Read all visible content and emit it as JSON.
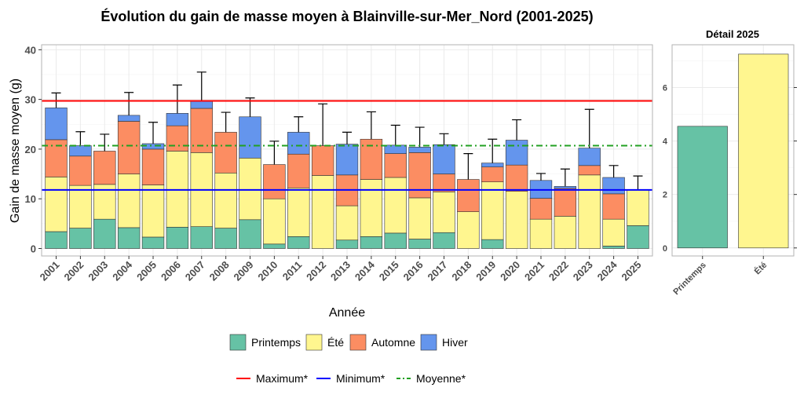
{
  "chart_data": [
    {
      "type": "bar",
      "stacked": true,
      "title": "Évolution du gain de masse moyen à Blainville-sur-Mer_Nord (2001-2025)",
      "xlabel": "Année",
      "ylabel": "Gain de masse moyen (g)",
      "ylim": [
        0,
        40
      ],
      "yticks": [
        0,
        10,
        20,
        30,
        40
      ],
      "grid": true,
      "legend_position": "bottom",
      "categories": [
        "2001",
        "2002",
        "2003",
        "2004",
        "2005",
        "2006",
        "2007",
        "2008",
        "2009",
        "2010",
        "2011",
        "2012",
        "2013",
        "2014",
        "2015",
        "2016",
        "2017",
        "2018",
        "2019",
        "2020",
        "2021",
        "2022",
        "2023",
        "2024",
        "2025"
      ],
      "series": [
        {
          "name": "Printemps",
          "color": "#66c2a5",
          "values": [
            3.4,
            4.1,
            5.9,
            4.2,
            2.3,
            4.3,
            4.4,
            4.1,
            5.8,
            0.9,
            2.4,
            0,
            1.7,
            2.4,
            3.1,
            1.9,
            3.2,
            0,
            1.8,
            0,
            0,
            0,
            0,
            0.5,
            4.6
          ]
        },
        {
          "name": "Été",
          "color": "#fff68f",
          "values": [
            11.0,
            8.6,
            7.0,
            10.8,
            10.5,
            15.3,
            14.9,
            11.1,
            12.4,
            9.1,
            9.8,
            14.7,
            6.9,
            11.5,
            11.2,
            8.3,
            8.2,
            7.4,
            11.6,
            11.5,
            5.9,
            6.5,
            14.8,
            5.4,
            7.2
          ]
        },
        {
          "name": "Automne",
          "color": "#fc8d62",
          "values": [
            7.5,
            5.9,
            6.7,
            10.6,
            7.2,
            5.1,
            8.9,
            8.2,
            0,
            6.9,
            6.8,
            6.0,
            6.2,
            8.1,
            4.8,
            9.1,
            3.6,
            6.5,
            3.0,
            5.3,
            4.2,
            5.6,
            1.9,
            5.1,
            0
          ]
        },
        {
          "name": "Hiver",
          "color": "#6495ed",
          "values": [
            6.4,
            2.1,
            0,
            1.2,
            1.1,
            2.5,
            1.5,
            0,
            8.3,
            0,
            4.4,
            0,
            6.2,
            0,
            1.7,
            1.1,
            5.9,
            0,
            0.8,
            5.0,
            3.6,
            0.4,
            3.5,
            3.3,
            0
          ]
        }
      ],
      "error_bars_top": [
        31.3,
        23.5,
        23.0,
        31.4,
        25.4,
        32.9,
        35.5,
        27.4,
        30.3,
        21.6,
        26.5,
        29.1,
        23.4,
        27.5,
        24.8,
        24.4,
        23.1,
        19.1,
        22.0,
        25.9,
        15.1,
        16.0,
        28.0,
        16.7,
        14.6
      ],
      "reference_lines": [
        {
          "name": "Maximum*",
          "value": 29.7,
          "color": "#ff0000",
          "style": "solid"
        },
        {
          "name": "Minimum*",
          "value": 11.8,
          "color": "#0000ff",
          "style": "solid"
        },
        {
          "name": "Moyenne*",
          "value": 20.7,
          "color": "#22a022",
          "style": "dashed"
        }
      ]
    },
    {
      "type": "bar",
      "title": "Détail 2025",
      "categories": [
        "Printemps",
        "Été"
      ],
      "values": [
        4.55,
        7.25
      ],
      "colors": [
        "#66c2a5",
        "#fff68f"
      ],
      "ylim": [
        0,
        7.6
      ],
      "yticks": [
        0,
        2,
        4,
        6
      ],
      "grid": true
    }
  ]
}
